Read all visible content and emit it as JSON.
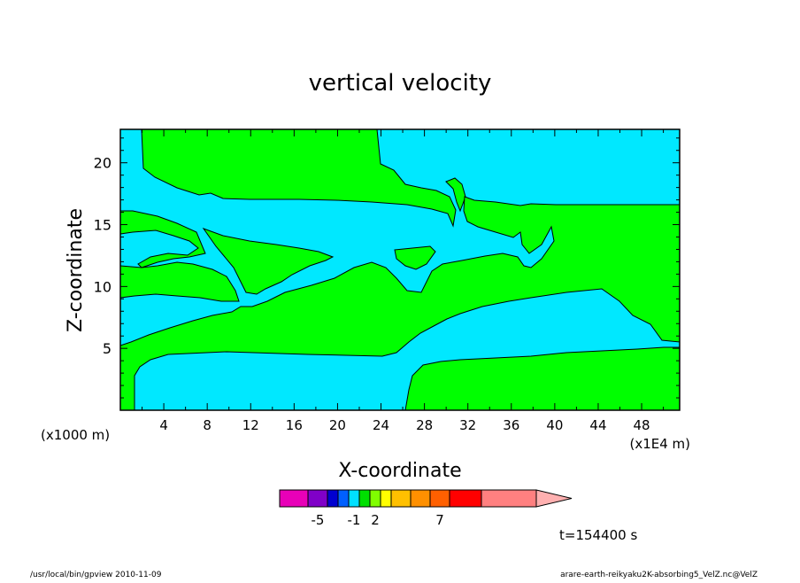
{
  "chart_data": {
    "type": "contour",
    "title": "vertical velocity",
    "xlabel": "X-coordinate",
    "ylabel": "Z-coordinate",
    "x_unit_left": "(x1000 m)",
    "x_unit_right": "(x1E4 m)",
    "xlim": [
      0,
      51.5
    ],
    "ylim": [
      0,
      22.7
    ],
    "x_ticks": [
      "4",
      "8",
      "12",
      "16",
      "20",
      "24",
      "28",
      "32",
      "36",
      "40",
      "44",
      "48"
    ],
    "x_tick_values": [
      4,
      8,
      12,
      16,
      20,
      24,
      28,
      32,
      36,
      40,
      44,
      48
    ],
    "y_ticks": [
      "5",
      "10",
      "15",
      "20"
    ],
    "y_tick_values": [
      5,
      10,
      15,
      20
    ],
    "fill_colors": {
      "positive": "#00ff00",
      "negative": "#00e8ff"
    },
    "colorbar": {
      "colors": [
        "#e800b8",
        "#8000c8",
        "#0000d0",
        "#0060ff",
        "#00e0ff",
        "#00e000",
        "#80ff00",
        "#ffff00",
        "#ffc000",
        "#ff9000",
        "#ff6000",
        "#ff0000",
        "#ff8080",
        "#ffb0b0"
      ],
      "labels": [
        "-5",
        "-1",
        "2",
        "7"
      ],
      "label_positions": [
        1.5,
        4.5,
        6.5,
        10.5
      ]
    },
    "time_label": "t=154400 s",
    "footer_left": "/usr/local/bin/gpview  2010-11-09",
    "footer_right": "arare-earth-reikyaku2K-absorbing5_VelZ.nc@VelZ"
  }
}
